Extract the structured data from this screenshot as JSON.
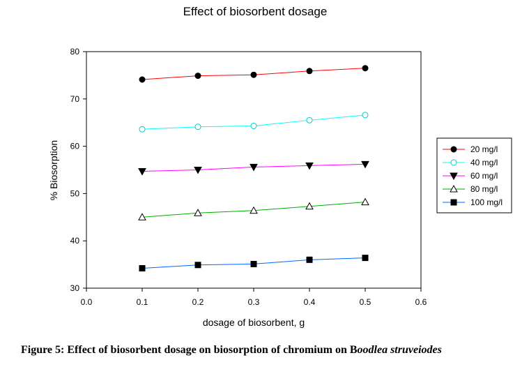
{
  "chart_data": {
    "type": "line",
    "title": "Effect of biosorbent dosage",
    "xlabel": "dosage of biosorbent, g",
    "ylabel": "% Biosorption",
    "xlim": [
      0.0,
      0.6
    ],
    "ylim": [
      30,
      80
    ],
    "xticks": [
      "0.0",
      "0.1",
      "0.2",
      "0.3",
      "0.4",
      "0.5",
      "0.6"
    ],
    "yticks": [
      "30",
      "40",
      "50",
      "60",
      "70",
      "80"
    ],
    "grid": false,
    "legend_position": "right",
    "x": [
      0.1,
      0.2,
      0.3,
      0.4,
      0.5
    ],
    "series": [
      {
        "name": "20 mg/l",
        "values": [
          74.1,
          74.9,
          75.1,
          75.9,
          76.5
        ],
        "color": "#ff0000",
        "marker": "filled-circle"
      },
      {
        "name": "40 mg/l",
        "values": [
          63.6,
          64.1,
          64.3,
          65.5,
          66.6
        ],
        "color": "#00ffff",
        "marker": "open-circle"
      },
      {
        "name": "60 mg/l",
        "values": [
          54.7,
          55.0,
          55.6,
          55.9,
          56.2
        ],
        "color": "#ff00ff",
        "marker": "filled-triangle-down"
      },
      {
        "name": "80 mg/l",
        "values": [
          45.0,
          45.9,
          46.4,
          47.3,
          48.2
        ],
        "color": "#00aa00",
        "marker": "open-triangle-up"
      },
      {
        "name": "100 mg/l",
        "values": [
          34.2,
          34.9,
          35.1,
          36.0,
          36.4
        ],
        "color": "#0066ff",
        "marker": "filled-square"
      }
    ]
  },
  "caption": {
    "prefix": "Figure 5: Effect of biosorbent dosage on biosorption of chromium on B",
    "italic": "oodlea struveiodes"
  }
}
